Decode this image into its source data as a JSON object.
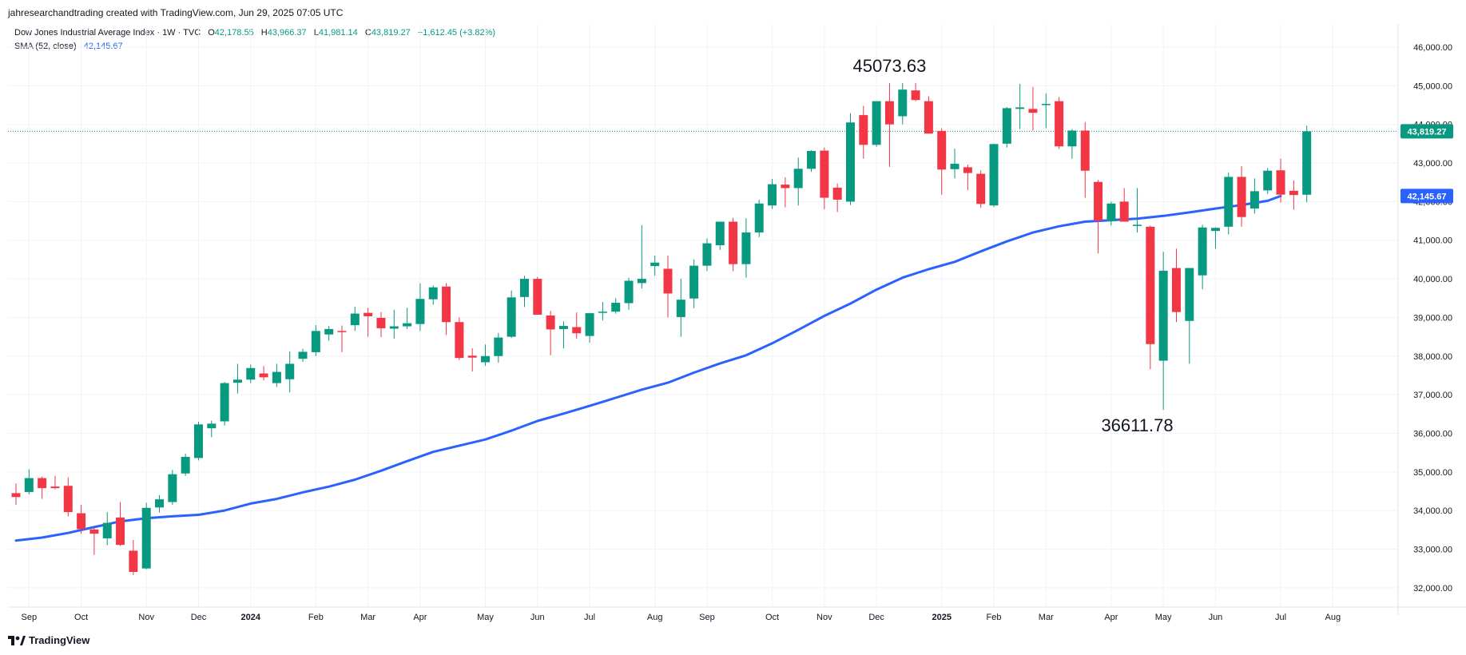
{
  "header": {
    "attribution": "jahresearchandtrading created with TradingView.com, Jun 29, 2025 07:05 UTC"
  },
  "legend": {
    "symbol": "Dow Jones Industrial Average Index · 1W · TVC",
    "o_label": "O",
    "o_value": "42,178.55",
    "h_label": "H",
    "h_value": "43,966.37",
    "l_label": "L",
    "l_value": "41,981.14",
    "c_label": "C",
    "c_value": "43,819.27",
    "change": "+1,612.45 (+3.82%)",
    "sma_label": "SMA (52, close)",
    "sma_value": "42,145.67"
  },
  "footer": {
    "brand": "TradingView"
  },
  "colors": {
    "up": "#089981",
    "down": "#f23645",
    "sma": "#2962ff",
    "grid": "#f0f3fa",
    "text": "#131722"
  },
  "chart_data": {
    "type": "candlestick",
    "timeframe": "1W",
    "ylim": [
      31500,
      46600
    ],
    "yticks": [
      32000,
      33000,
      34000,
      35000,
      36000,
      37000,
      38000,
      39000,
      40000,
      41000,
      42000,
      43000,
      44000,
      45000,
      46000
    ],
    "ytick_labels": [
      "32,000.00",
      "33,000.00",
      "34,000.00",
      "35,000.00",
      "36,000.00",
      "37,000.00",
      "38,000.00",
      "39,000.00",
      "40,000.00",
      "41,000.00",
      "42,000.00",
      "43,000.00",
      "44,000.00",
      "45,000.00",
      "46,000.00"
    ],
    "xtick_labels": [
      {
        "label": "Sep",
        "i": 1
      },
      {
        "label": "Oct",
        "i": 5
      },
      {
        "label": "Nov",
        "i": 10
      },
      {
        "label": "Dec",
        "i": 14
      },
      {
        "label": "2024",
        "i": 18,
        "bold": true
      },
      {
        "label": "Feb",
        "i": 23
      },
      {
        "label": "Mar",
        "i": 27
      },
      {
        "label": "Apr",
        "i": 31
      },
      {
        "label": "May",
        "i": 36
      },
      {
        "label": "Jun",
        "i": 40
      },
      {
        "label": "Jul",
        "i": 44
      },
      {
        "label": "Aug",
        "i": 49
      },
      {
        "label": "Sep",
        "i": 53
      },
      {
        "label": "Oct",
        "i": 58
      },
      {
        "label": "Nov",
        "i": 62
      },
      {
        "label": "Dec",
        "i": 66
      },
      {
        "label": "2025",
        "i": 71,
        "bold": true
      },
      {
        "label": "Feb",
        "i": 75
      },
      {
        "label": "Mar",
        "i": 79
      },
      {
        "label": "Apr",
        "i": 84
      },
      {
        "label": "May",
        "i": 88
      },
      {
        "label": "Jun",
        "i": 92
      },
      {
        "label": "Jul",
        "i": 97
      },
      {
        "label": "Aug",
        "i": 101
      }
    ],
    "candles": [
      {
        "o": 34450,
        "h": 34700,
        "l": 34150,
        "c": 34350
      },
      {
        "o": 34480,
        "h": 35070,
        "l": 34420,
        "c": 34840
      },
      {
        "o": 34840,
        "h": 34880,
        "l": 34300,
        "c": 34580
      },
      {
        "o": 34620,
        "h": 34900,
        "l": 34550,
        "c": 34580
      },
      {
        "o": 34640,
        "h": 34860,
        "l": 33850,
        "c": 33960
      },
      {
        "o": 33930,
        "h": 34150,
        "l": 33400,
        "c": 33520
      },
      {
        "o": 33510,
        "h": 33560,
        "l": 32850,
        "c": 33400
      },
      {
        "o": 33280,
        "h": 33960,
        "l": 33100,
        "c": 33680
      },
      {
        "o": 33820,
        "h": 34220,
        "l": 33080,
        "c": 33110
      },
      {
        "o": 32960,
        "h": 33240,
        "l": 32330,
        "c": 32410
      },
      {
        "o": 32500,
        "h": 34200,
        "l": 32480,
        "c": 34070
      },
      {
        "o": 34080,
        "h": 34400,
        "l": 33950,
        "c": 34290
      },
      {
        "o": 34220,
        "h": 35050,
        "l": 34150,
        "c": 34940
      },
      {
        "o": 34960,
        "h": 35470,
        "l": 34900,
        "c": 35390
      },
      {
        "o": 35360,
        "h": 36300,
        "l": 35300,
        "c": 36230
      },
      {
        "o": 36130,
        "h": 36330,
        "l": 35900,
        "c": 36250
      },
      {
        "o": 36310,
        "h": 37330,
        "l": 36200,
        "c": 37300
      },
      {
        "o": 37310,
        "h": 37800,
        "l": 37030,
        "c": 37390
      },
      {
        "o": 37390,
        "h": 37780,
        "l": 37300,
        "c": 37690
      },
      {
        "o": 37550,
        "h": 37740,
        "l": 37370,
        "c": 37450
      },
      {
        "o": 37300,
        "h": 37800,
        "l": 37200,
        "c": 37590
      },
      {
        "o": 37400,
        "h": 38120,
        "l": 37060,
        "c": 37800
      },
      {
        "o": 37930,
        "h": 38190,
        "l": 37850,
        "c": 38110
      },
      {
        "o": 38100,
        "h": 38800,
        "l": 38000,
        "c": 38650
      },
      {
        "o": 38560,
        "h": 38780,
        "l": 38400,
        "c": 38700
      },
      {
        "o": 38650,
        "h": 38790,
        "l": 38100,
        "c": 38630
      },
      {
        "o": 38800,
        "h": 39280,
        "l": 38650,
        "c": 39100
      },
      {
        "o": 39120,
        "h": 39250,
        "l": 38500,
        "c": 39030
      },
      {
        "o": 38990,
        "h": 39140,
        "l": 38490,
        "c": 38720
      },
      {
        "o": 38710,
        "h": 39200,
        "l": 38450,
        "c": 38770
      },
      {
        "o": 38770,
        "h": 39250,
        "l": 38700,
        "c": 38850
      },
      {
        "o": 38830,
        "h": 39880,
        "l": 38650,
        "c": 39480
      },
      {
        "o": 39470,
        "h": 39830,
        "l": 39330,
        "c": 39780
      },
      {
        "o": 39800,
        "h": 39890,
        "l": 38550,
        "c": 38880
      },
      {
        "o": 38880,
        "h": 39000,
        "l": 37900,
        "c": 37950
      },
      {
        "o": 38010,
        "h": 38200,
        "l": 37600,
        "c": 37960
      },
      {
        "o": 37840,
        "h": 38300,
        "l": 37750,
        "c": 38000
      },
      {
        "o": 38000,
        "h": 38600,
        "l": 37830,
        "c": 38480
      },
      {
        "o": 38500,
        "h": 39700,
        "l": 38470,
        "c": 39520
      },
      {
        "o": 39530,
        "h": 40080,
        "l": 39270,
        "c": 40000
      },
      {
        "o": 40000,
        "h": 40050,
        "l": 39160,
        "c": 39070
      },
      {
        "o": 39050,
        "h": 39170,
        "l": 38020,
        "c": 38690
      },
      {
        "o": 38700,
        "h": 38900,
        "l": 38200,
        "c": 38780
      },
      {
        "o": 38750,
        "h": 39130,
        "l": 38450,
        "c": 38590
      },
      {
        "o": 38520,
        "h": 39120,
        "l": 38350,
        "c": 39110
      },
      {
        "o": 39120,
        "h": 39400,
        "l": 38920,
        "c": 39150
      },
      {
        "o": 39150,
        "h": 39500,
        "l": 39100,
        "c": 39380
      },
      {
        "o": 39370,
        "h": 40030,
        "l": 39200,
        "c": 39950
      },
      {
        "o": 39890,
        "h": 41390,
        "l": 39750,
        "c": 40000
      },
      {
        "o": 40330,
        "h": 40600,
        "l": 40080,
        "c": 40420
      },
      {
        "o": 40260,
        "h": 40600,
        "l": 39000,
        "c": 39620
      },
      {
        "o": 39010,
        "h": 40000,
        "l": 38500,
        "c": 39460
      },
      {
        "o": 39490,
        "h": 40500,
        "l": 39240,
        "c": 40340
      },
      {
        "o": 40340,
        "h": 41050,
        "l": 40200,
        "c": 40920
      },
      {
        "o": 40870,
        "h": 41480,
        "l": 40750,
        "c": 41480
      },
      {
        "o": 41480,
        "h": 41580,
        "l": 40200,
        "c": 40380
      },
      {
        "o": 40380,
        "h": 41570,
        "l": 40030,
        "c": 41200
      },
      {
        "o": 41200,
        "h": 42050,
        "l": 41080,
        "c": 41950
      },
      {
        "o": 41900,
        "h": 42590,
        "l": 41810,
        "c": 42450
      },
      {
        "o": 42440,
        "h": 42630,
        "l": 41850,
        "c": 42350
      },
      {
        "o": 42350,
        "h": 43140,
        "l": 41900,
        "c": 42850
      },
      {
        "o": 42850,
        "h": 43330,
        "l": 42770,
        "c": 43310
      },
      {
        "o": 43320,
        "h": 43400,
        "l": 41800,
        "c": 42100
      },
      {
        "o": 42360,
        "h": 42470,
        "l": 41730,
        "c": 42050
      },
      {
        "o": 42000,
        "h": 44290,
        "l": 41910,
        "c": 44050
      },
      {
        "o": 44240,
        "h": 44480,
        "l": 43110,
        "c": 43470
      },
      {
        "o": 43470,
        "h": 44600,
        "l": 43420,
        "c": 44600
      },
      {
        "o": 44600,
        "h": 45070,
        "l": 42900,
        "c": 44000
      },
      {
        "o": 44210,
        "h": 45070,
        "l": 44000,
        "c": 44900
      },
      {
        "o": 44880,
        "h": 45070,
        "l": 44600,
        "c": 44630
      },
      {
        "o": 44600,
        "h": 44730,
        "l": 43800,
        "c": 43760
      },
      {
        "o": 43830,
        "h": 43900,
        "l": 42180,
        "c": 42830
      },
      {
        "o": 42840,
        "h": 43370,
        "l": 42600,
        "c": 42980
      },
      {
        "o": 42890,
        "h": 42960,
        "l": 42300,
        "c": 42740
      },
      {
        "o": 42720,
        "h": 42810,
        "l": 41840,
        "c": 41940
      },
      {
        "o": 41900,
        "h": 43500,
        "l": 41860,
        "c": 43490
      },
      {
        "o": 43500,
        "h": 44450,
        "l": 43400,
        "c": 44420
      },
      {
        "o": 44400,
        "h": 45050,
        "l": 43880,
        "c": 44440
      },
      {
        "o": 44400,
        "h": 44970,
        "l": 43840,
        "c": 44300
      },
      {
        "o": 44500,
        "h": 44800,
        "l": 43900,
        "c": 44530
      },
      {
        "o": 44600,
        "h": 44710,
        "l": 43360,
        "c": 43430
      },
      {
        "o": 43430,
        "h": 43880,
        "l": 43110,
        "c": 43840
      },
      {
        "o": 43840,
        "h": 44060,
        "l": 42100,
        "c": 42800
      },
      {
        "o": 42510,
        "h": 42560,
        "l": 40660,
        "c": 41500
      },
      {
        "o": 41490,
        "h": 42000,
        "l": 41380,
        "c": 41950
      },
      {
        "o": 42000,
        "h": 42350,
        "l": 41500,
        "c": 41480
      },
      {
        "o": 41380,
        "h": 42350,
        "l": 41200,
        "c": 41400
      },
      {
        "o": 41350,
        "h": 41380,
        "l": 37660,
        "c": 38310
      },
      {
        "o": 37880,
        "h": 40700,
        "l": 36610,
        "c": 40210
      },
      {
        "o": 40280,
        "h": 40780,
        "l": 38880,
        "c": 39140
      },
      {
        "o": 38910,
        "h": 40280,
        "l": 37800,
        "c": 40280
      },
      {
        "o": 40090,
        "h": 41400,
        "l": 39730,
        "c": 41330
      },
      {
        "o": 41240,
        "h": 41330,
        "l": 40780,
        "c": 41320
      },
      {
        "o": 41350,
        "h": 42750,
        "l": 41150,
        "c": 42640
      },
      {
        "o": 42640,
        "h": 42920,
        "l": 41350,
        "c": 41600
      },
      {
        "o": 41820,
        "h": 42600,
        "l": 41690,
        "c": 42270
      },
      {
        "o": 42290,
        "h": 42870,
        "l": 42200,
        "c": 42800
      },
      {
        "o": 42810,
        "h": 43110,
        "l": 41970,
        "c": 42180
      },
      {
        "o": 42280,
        "h": 42550,
        "l": 41790,
        "c": 42170
      },
      {
        "o": 42178.55,
        "h": 43966.37,
        "l": 41981.14,
        "c": 43819.27
      }
    ],
    "sma52": {
      "name": "SMA (52, close)",
      "points": [
        [
          0,
          33220
        ],
        [
          2,
          33300
        ],
        [
          4,
          33420
        ],
        [
          6,
          33570
        ],
        [
          8,
          33720
        ],
        [
          10,
          33800
        ],
        [
          12,
          33850
        ],
        [
          14,
          33890
        ],
        [
          16,
          34000
        ],
        [
          18,
          34180
        ],
        [
          20,
          34300
        ],
        [
          22,
          34470
        ],
        [
          24,
          34620
        ],
        [
          26,
          34800
        ],
        [
          28,
          35030
        ],
        [
          30,
          35280
        ],
        [
          32,
          35520
        ],
        [
          34,
          35680
        ],
        [
          36,
          35840
        ],
        [
          38,
          36070
        ],
        [
          40,
          36320
        ],
        [
          42,
          36510
        ],
        [
          44,
          36710
        ],
        [
          46,
          36920
        ],
        [
          48,
          37130
        ],
        [
          50,
          37310
        ],
        [
          52,
          37570
        ],
        [
          54,
          37810
        ],
        [
          56,
          38020
        ],
        [
          58,
          38330
        ],
        [
          60,
          38680
        ],
        [
          62,
          39040
        ],
        [
          64,
          39360
        ],
        [
          66,
          39720
        ],
        [
          68,
          40030
        ],
        [
          70,
          40250
        ],
        [
          72,
          40440
        ],
        [
          74,
          40710
        ],
        [
          76,
          40970
        ],
        [
          78,
          41200
        ],
        [
          80,
          41360
        ],
        [
          82,
          41480
        ],
        [
          84,
          41520
        ],
        [
          86,
          41560
        ],
        [
          88,
          41630
        ],
        [
          90,
          41720
        ],
        [
          92,
          41820
        ],
        [
          94,
          41910
        ],
        [
          96,
          42020
        ],
        [
          97,
          42145
        ]
      ]
    },
    "last_price": {
      "value": 43819.27,
      "label": "43,819.27"
    },
    "sma_last": {
      "value": 42145.67,
      "label": "42,145.67"
    },
    "annotations": [
      {
        "text": "45073.63",
        "i": 67,
        "value": 45073.63,
        "pos": "above"
      },
      {
        "text": "36611.78",
        "i": 86,
        "value": 36611.78,
        "pos": "below"
      }
    ]
  }
}
